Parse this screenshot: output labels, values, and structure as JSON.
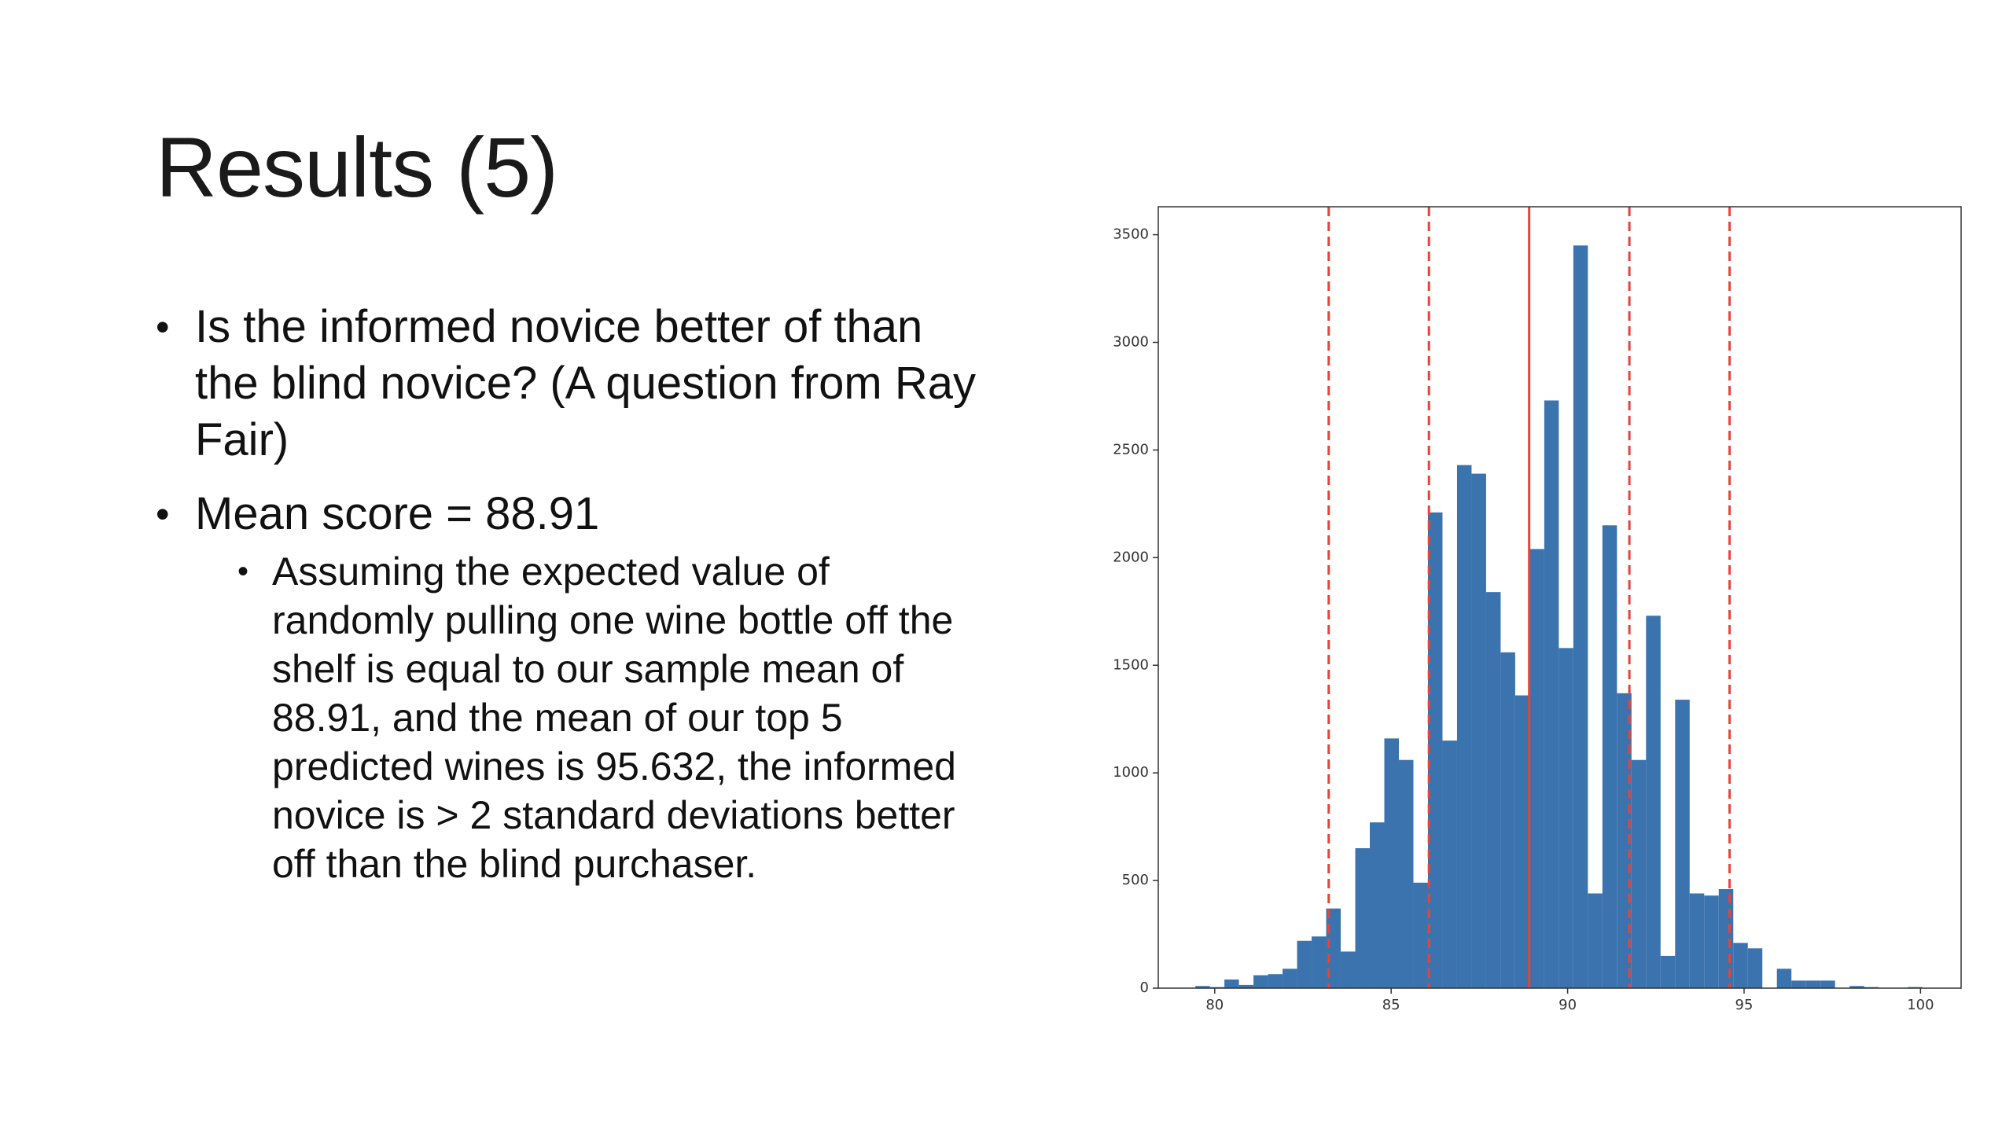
{
  "slide": {
    "title": "Results (5)",
    "bullets": [
      {
        "text": "Is the informed novice better of than the blind novice? (A question from Ray Fair)"
      },
      {
        "text": "Mean score = 88.91",
        "subbullets": [
          "Assuming the expected value of randomly pulling one wine bottle off the shelf is equal to our sample mean of 88.91, and the mean of our top 5 predicted wines is 95.632, the informed novice is > 2 standard deviations better off than the blind purchaser."
        ]
      }
    ]
  },
  "chart_data": {
    "type": "histogram",
    "bins": [
      79.45,
      79.862,
      80.274,
      80.686,
      81.098,
      81.51,
      81.922,
      82.334,
      82.746,
      83.158,
      83.57,
      83.982,
      84.394,
      84.806,
      85.218,
      85.63,
      86.042,
      86.454,
      86.866,
      87.278,
      87.69,
      88.102,
      88.514,
      88.926,
      89.338,
      89.75,
      90.162,
      90.574,
      90.986,
      91.398,
      91.81,
      92.222,
      92.634,
      93.046,
      93.458,
      93.87,
      94.282,
      94.694,
      95.106,
      95.518,
      95.93,
      96.342,
      96.754,
      97.166,
      97.578,
      97.99,
      98.402,
      98.814,
      99.226,
      99.638,
      100.05
    ],
    "values": [
      10,
      5,
      40,
      15,
      60,
      65,
      90,
      220,
      240,
      370,
      170,
      650,
      770,
      1160,
      1060,
      490,
      2210,
      1150,
      2430,
      2390,
      1840,
      1560,
      1360,
      2040,
      2730,
      1580,
      3450,
      440,
      2150,
      1370,
      1060,
      1730,
      150,
      1340,
      440,
      430,
      460,
      210,
      185,
      0,
      90,
      35,
      35,
      35,
      0,
      10,
      5,
      0,
      0,
      5
    ],
    "color": "#3b73ae",
    "mean_line": 88.91,
    "std_lines": [
      83.23,
      86.07,
      91.75,
      94.59
    ],
    "line_color": "#e8423b",
    "xlim": [
      78.4,
      101.15
    ],
    "xticks": [
      80,
      85,
      90,
      95,
      100
    ],
    "ylim": [
      0,
      3630
    ],
    "yticks": [
      0,
      500,
      1000,
      1500,
      2000,
      2500,
      3000,
      3500
    ]
  }
}
